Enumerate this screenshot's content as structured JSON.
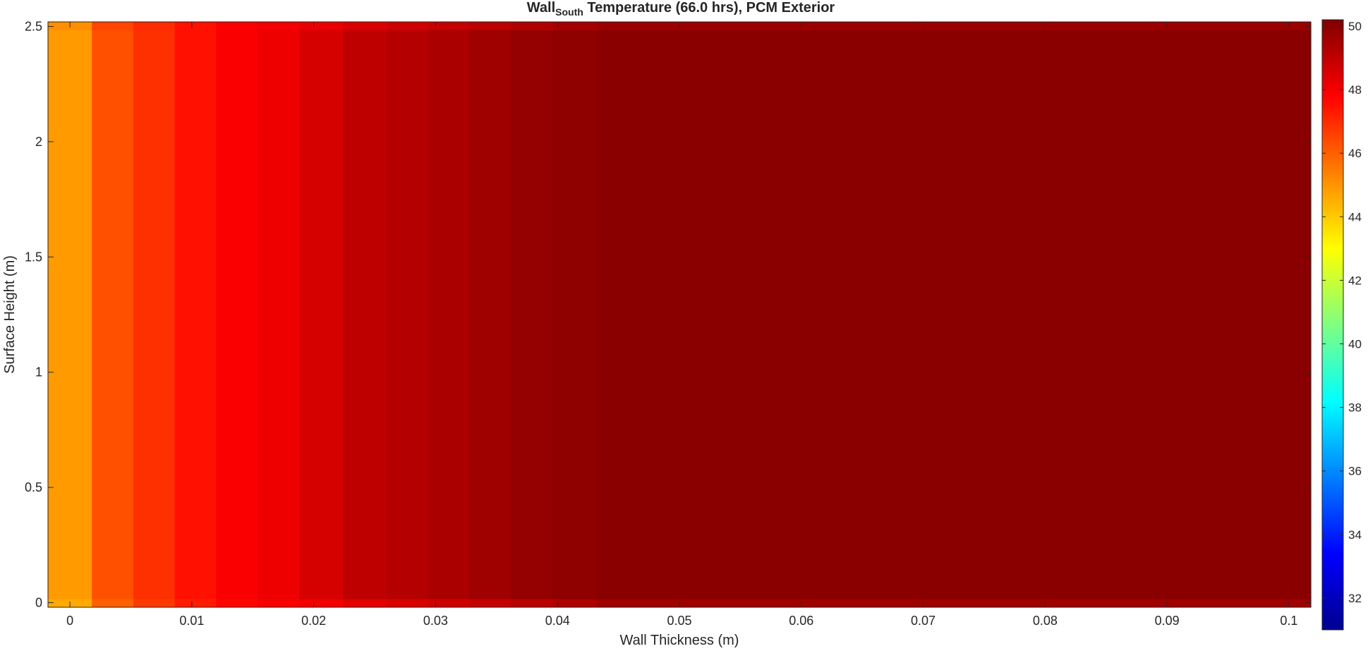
{
  "chart_data": {
    "type": "heatmap",
    "title_main": "Wall",
    "title_sub": "South",
    "title_rest": " Temperature (66.0 hrs), PCM Exterior",
    "xlabel": "Wall Thickness (m)",
    "ylabel": "Surface Height (m)",
    "xlim": [
      -0.0018,
      0.1018
    ],
    "ylim": [
      -0.02,
      2.52
    ],
    "xticks": [
      0,
      0.01,
      0.02,
      0.03,
      0.04,
      0.05,
      0.06,
      0.07,
      0.08,
      0.09,
      0.1
    ],
    "xticklabels": [
      "0",
      "0.01",
      "0.02",
      "0.03",
      "0.04",
      "0.05",
      "0.06",
      "0.07",
      "0.08",
      "0.09",
      "0.1"
    ],
    "yticks": [
      0,
      0.5,
      1,
      1.5,
      2,
      2.5
    ],
    "yticklabels": [
      "0",
      "0.5",
      "1",
      "1.5",
      "2",
      "2.5"
    ],
    "colormap": "jet",
    "clim": [
      31,
      50.2
    ],
    "colorbar_ticks": [
      32,
      34,
      36,
      38,
      40,
      42,
      44,
      46,
      48,
      50
    ],
    "colorbar_ticklabels": [
      "32",
      "34",
      "36",
      "38",
      "40",
      "42",
      "44",
      "46",
      "48",
      "50"
    ],
    "x_cell_edges": [
      -0.0018,
      0.0018,
      0.0052,
      0.0086,
      0.012,
      0.0154,
      0.0188,
      0.0224,
      0.026,
      0.0294,
      0.0328,
      0.0362,
      0.0396,
      0.0432,
      0.1018
    ],
    "column_temperatures": [
      44.9,
      46.3,
      46.9,
      47.5,
      47.9,
      48.1,
      48.6,
      49.0,
      49.2,
      49.4,
      49.6,
      49.8,
      49.9,
      50.0
    ],
    "edge_rows": {
      "bottom": {
        "y_range": [
          -0.02,
          0.015
        ],
        "temperatures": [
          44.6,
          46.0,
          46.7,
          47.3,
          47.7,
          47.9,
          48.0,
          48.3,
          48.5,
          48.7,
          48.9,
          49.1,
          49.3,
          49.6
        ]
      },
      "top": {
        "y_range": [
          2.485,
          2.52
        ],
        "temperatures": [
          45.1,
          46.5,
          47.0,
          47.5,
          47.9,
          48.0,
          48.2,
          48.5,
          48.7,
          48.9,
          49.1,
          49.3,
          49.5,
          49.7
        ]
      }
    },
    "grid": false
  }
}
